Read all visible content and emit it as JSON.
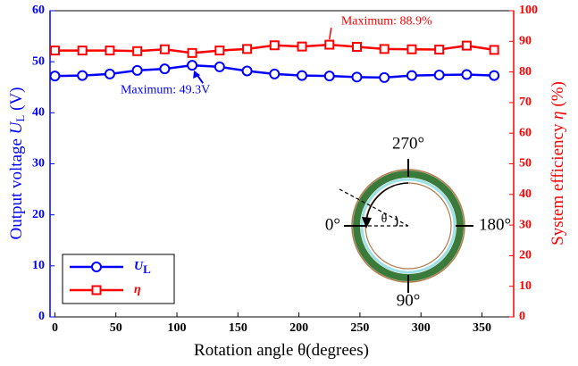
{
  "chart_data": {
    "type": "line",
    "xlabel": [
      "Rotation angle ",
      "θ",
      "(degrees)"
    ],
    "ylabel": [
      "Output voltage ",
      "U",
      "L",
      " (V)"
    ],
    "y2label": [
      "System efficiency ",
      "η",
      " (%)"
    ],
    "x": [
      0,
      22.5,
      45,
      67.5,
      90,
      112.5,
      135,
      157.5,
      180,
      202.5,
      225,
      247.5,
      270,
      292.5,
      315,
      337.5,
      360
    ],
    "xlim": [
      -4,
      376
    ],
    "xticks": [
      0,
      50,
      100,
      150,
      200,
      250,
      300,
      350
    ],
    "ylim": [
      0,
      60
    ],
    "yticks": [
      0,
      10,
      20,
      30,
      40,
      50,
      60
    ],
    "y2lim": [
      0,
      100
    ],
    "y2ticks": [
      0,
      10,
      20,
      30,
      40,
      50,
      60,
      70,
      80,
      90,
      100
    ],
    "legend": "lower left",
    "series": [
      {
        "name": "U",
        "subscript": "L",
        "color": "#0000ff",
        "marker": "circle",
        "values": [
          47.2,
          47.3,
          47.6,
          48.3,
          48.6,
          49.3,
          49.0,
          48.2,
          47.6,
          47.3,
          47.2,
          47.0,
          46.9,
          47.3,
          47.4,
          47.5,
          47.3
        ]
      },
      {
        "name": "η",
        "color": "#ff0000",
        "marker": "square",
        "axis": "y2",
        "values": [
          87.0,
          87.0,
          87.0,
          86.8,
          87.4,
          86.2,
          87.0,
          87.5,
          88.7,
          88.3,
          88.9,
          88.2,
          87.5,
          87.4,
          87.3,
          88.6,
          87.2
        ]
      }
    ],
    "annotations": [
      {
        "text": "Maximum: 88.9%",
        "series": 1,
        "index": 10
      },
      {
        "text": "Maximum: 49.3V",
        "series": 0,
        "index": 5
      }
    ],
    "inset": {
      "labels": [
        "270°",
        "180°",
        "90°",
        "0°",
        "θ"
      ]
    }
  }
}
